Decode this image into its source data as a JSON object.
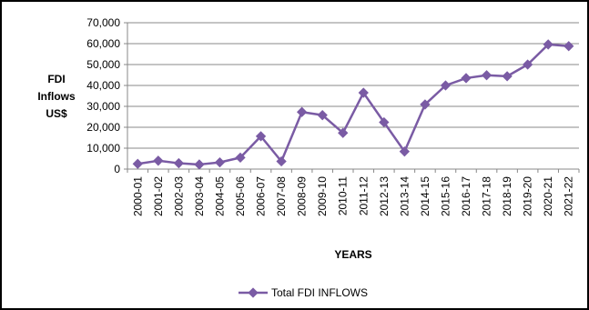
{
  "chart_data": {
    "type": "line",
    "title": "",
    "xlabel": "YEARS",
    "ylabel_lines": [
      "FDI",
      "Inflows",
      "US$"
    ],
    "ylim": [
      0,
      70000
    ],
    "y_ticks": [
      "0",
      "10,000",
      "20,000",
      "30,000",
      "40,000",
      "50,000",
      "60,000",
      "70,000"
    ],
    "legend_position": "bottom",
    "grid": true,
    "categories": [
      "2000-01",
      "2001-02",
      "2002-03",
      "2003-04",
      "2004-05",
      "2005-06",
      "2006-07",
      "2007-08",
      "2008-09",
      "2009-10",
      "2010-11",
      "2011-12",
      "2012-13",
      "2013-14",
      "2014-15",
      "2015-16",
      "2016-17",
      "2017-18",
      "2018-19",
      "2019-20",
      "2020-21",
      "2021-22"
    ],
    "series": [
      {
        "name": "Total FDI INFLOWS",
        "color": "#7a5ba4",
        "values": [
          2500,
          4000,
          2800,
          2200,
          3200,
          5500,
          15700,
          3700,
          27300,
          25800,
          17300,
          36500,
          22400,
          8400,
          30900,
          40000,
          43500,
          44900,
          44400,
          50000,
          59600,
          58800
        ]
      }
    ]
  }
}
